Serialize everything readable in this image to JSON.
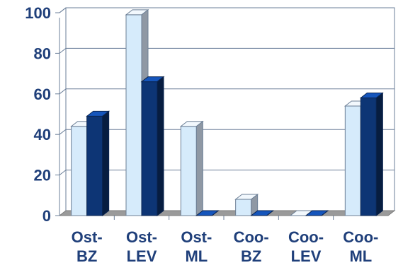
{
  "chart_data": {
    "type": "bar",
    "title": "",
    "xlabel": "",
    "ylabel": "",
    "ylim": [
      0,
      100
    ],
    "yticks": [
      "0",
      "20",
      "40",
      "60",
      "80",
      "100"
    ],
    "categories": [
      [
        "Ost-",
        "BZ"
      ],
      [
        "Ost-",
        "LEV"
      ],
      [
        "Ost-",
        "ML"
      ],
      [
        "Coo-",
        "BZ"
      ],
      [
        "Coo-",
        "LEV"
      ],
      [
        "Coo-",
        "ML"
      ]
    ],
    "series": [
      {
        "values": [
          44,
          99,
          44,
          8,
          0,
          54
        ],
        "color": "#d6ebfb"
      },
      {
        "values": [
          49,
          66,
          0,
          0,
          0,
          58
        ],
        "color": "#0d3575"
      }
    ],
    "grid": true,
    "style": "3d"
  }
}
